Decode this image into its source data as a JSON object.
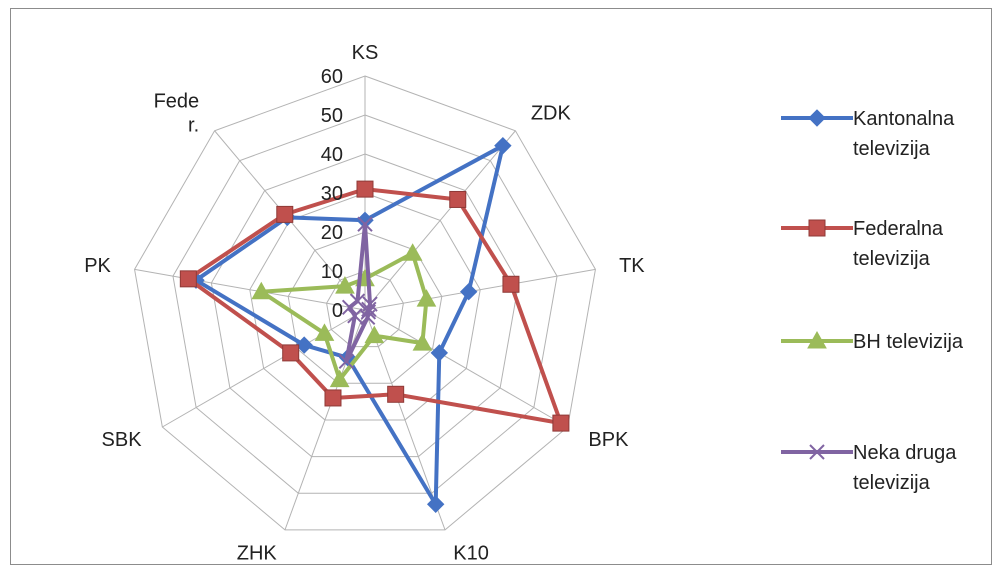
{
  "chart_data": {
    "type": "radar",
    "categories": [
      "KS",
      "ZDK",
      "TK",
      "BPK",
      "K10",
      "ZHK",
      "SBK",
      "PK",
      "Fede r."
    ],
    "category_label_lines": [
      [
        "KS"
      ],
      [
        "ZDK"
      ],
      [
        "TK"
      ],
      [
        "BPK"
      ],
      [
        "K10"
      ],
      [
        "ZHK"
      ],
      [
        "SBK"
      ],
      [
        "PK"
      ],
      [
        "Fede",
        "r."
      ]
    ],
    "r_ticks": [
      "0",
      "10",
      "20",
      "30",
      "40",
      "50",
      "60"
    ],
    "rlim": [
      0,
      60
    ],
    "grid": true,
    "legend_position": "right",
    "series": [
      {
        "name": "Kantonalna televizija",
        "name_lines": [
          "Kantonalna",
          "televizija"
        ],
        "color": "#4472C4",
        "marker": "diamond",
        "values": [
          23,
          55,
          27,
          22,
          53,
          13,
          18,
          44,
          31
        ]
      },
      {
        "name": "Federalna televizija",
        "name_lines": [
          "Federalna",
          "televizija"
        ],
        "color": "#C0504D",
        "marker": "square",
        "values": [
          31,
          37,
          38,
          58,
          23,
          24,
          22,
          46,
          32
        ]
      },
      {
        "name": "BH televizija",
        "name_lines": [
          "BH televizija"
        ],
        "color": "#9BBB59",
        "marker": "triangle",
        "values": [
          8,
          19,
          16,
          17,
          7,
          19,
          12,
          27,
          8
        ]
      },
      {
        "name": "Neka druga televizija",
        "name_lines": [
          "Neka druga",
          "televizija"
        ],
        "color": "#8064A2",
        "marker": "x",
        "values": [
          22,
          2,
          1,
          1,
          2,
          14,
          3,
          4,
          3
        ]
      }
    ]
  }
}
